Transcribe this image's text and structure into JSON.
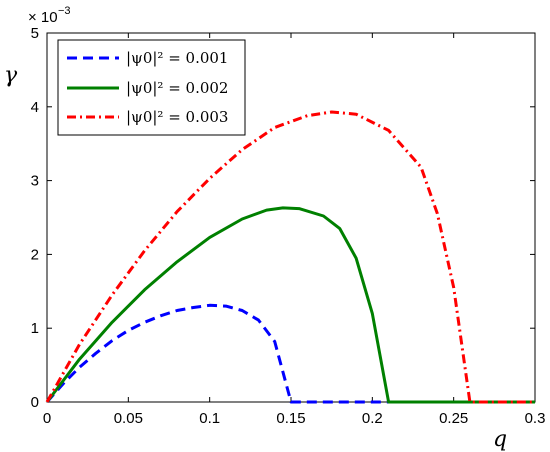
{
  "chart_data": {
    "type": "line",
    "xlabel": "q",
    "ylabel": "γ",
    "xlim": [
      0,
      0.3
    ],
    "ylim": [
      0,
      5
    ],
    "y_scale_label": "× 10",
    "y_scale_exponent": "−3",
    "x_ticks": [
      "0",
      "0.05",
      "0.1",
      "0.15",
      "0.2",
      "0.25",
      "0.3"
    ],
    "y_ticks": [
      "0",
      "1",
      "2",
      "3",
      "4",
      "5"
    ],
    "grid": false,
    "legend_position": "top-left",
    "series": [
      {
        "name": "|ψ0|² = 0.001",
        "color": "#0000ff",
        "style": "dashed",
        "points": [
          [
            0,
            0
          ],
          [
            0.01,
            0.25
          ],
          [
            0.02,
            0.47
          ],
          [
            0.03,
            0.66
          ],
          [
            0.04,
            0.83
          ],
          [
            0.05,
            0.97
          ],
          [
            0.06,
            1.08
          ],
          [
            0.07,
            1.17
          ],
          [
            0.08,
            1.24
          ],
          [
            0.09,
            1.28
          ],
          [
            0.1,
            1.31
          ],
          [
            0.11,
            1.3
          ],
          [
            0.12,
            1.24
          ],
          [
            0.13,
            1.11
          ],
          [
            0.14,
            0.82
          ],
          [
            0.15,
            0.0
          ],
          [
            0.3,
            0.0
          ]
        ]
      },
      {
        "name": "|ψ0|² = 0.002",
        "color": "#008000",
        "style": "solid",
        "points": [
          [
            0,
            0
          ],
          [
            0.02,
            0.58
          ],
          [
            0.04,
            1.08
          ],
          [
            0.06,
            1.52
          ],
          [
            0.08,
            1.9
          ],
          [
            0.1,
            2.23
          ],
          [
            0.12,
            2.48
          ],
          [
            0.135,
            2.6
          ],
          [
            0.145,
            2.63
          ],
          [
            0.155,
            2.62
          ],
          [
            0.17,
            2.52
          ],
          [
            0.18,
            2.35
          ],
          [
            0.19,
            1.95
          ],
          [
            0.2,
            1.2
          ],
          [
            0.21,
            0.0
          ],
          [
            0.3,
            0.0
          ]
        ]
      },
      {
        "name": "|ψ0|² = 0.003",
        "color": "#ff0000",
        "style": "dashdot",
        "points": [
          [
            0,
            0
          ],
          [
            0.02,
            0.78
          ],
          [
            0.04,
            1.45
          ],
          [
            0.06,
            2.05
          ],
          [
            0.08,
            2.58
          ],
          [
            0.1,
            3.03
          ],
          [
            0.12,
            3.42
          ],
          [
            0.14,
            3.72
          ],
          [
            0.16,
            3.88
          ],
          [
            0.175,
            3.93
          ],
          [
            0.19,
            3.9
          ],
          [
            0.21,
            3.68
          ],
          [
            0.23,
            3.18
          ],
          [
            0.24,
            2.55
          ],
          [
            0.25,
            1.55
          ],
          [
            0.26,
            0.0
          ],
          [
            0.3,
            0.0
          ]
        ]
      }
    ]
  }
}
